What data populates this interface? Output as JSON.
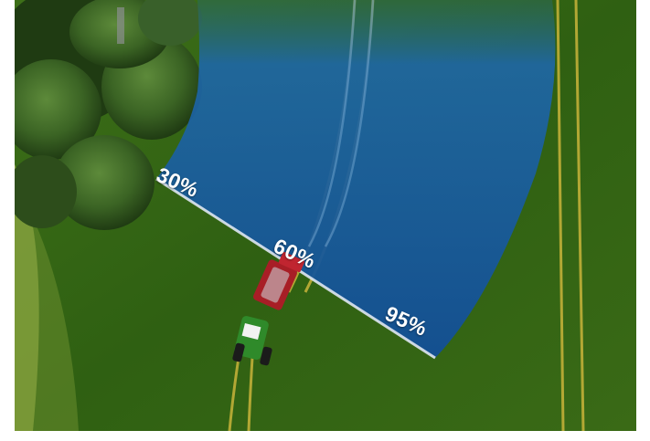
{
  "scene": {
    "description_colors": {
      "field": "#2f5d12",
      "spray": "#1f5fa8",
      "spray_dark": "#134a8a",
      "tractor": "#2f8a2a",
      "implement": "#b3202a",
      "tree": "#2c4a1c"
    }
  },
  "coverage_labels": {
    "low": "30%",
    "mid": "60%",
    "high": "95%"
  }
}
